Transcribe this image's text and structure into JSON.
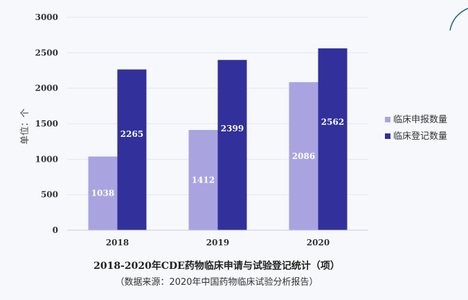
{
  "chart_data": {
    "type": "bar",
    "title": "2018-2020年CDE药物临床申请与试验登记统计（项）",
    "subtitle": "（数据来源：2020年中国药物临床试验分析报告）",
    "ylabel": "单位：个",
    "xlabel": "",
    "categories": [
      "2018",
      "2019",
      "2020"
    ],
    "ylim": [
      0,
      3000
    ],
    "yticks": [
      0,
      500,
      1000,
      1500,
      2000,
      2500,
      3000
    ],
    "grid": true,
    "legend_position": "right",
    "series": [
      {
        "name": "临床申报数量",
        "values": [
          1038,
          1412,
          2086
        ],
        "color": "#a9a4e0"
      },
      {
        "name": "临床登记数量",
        "values": [
          2265,
          2399,
          2562
        ],
        "color": "#32309a"
      }
    ]
  },
  "colors": {
    "background": "#f6f8fc",
    "gridline": "#e3e6ee",
    "decor_arc": "#1f6b8a"
  }
}
